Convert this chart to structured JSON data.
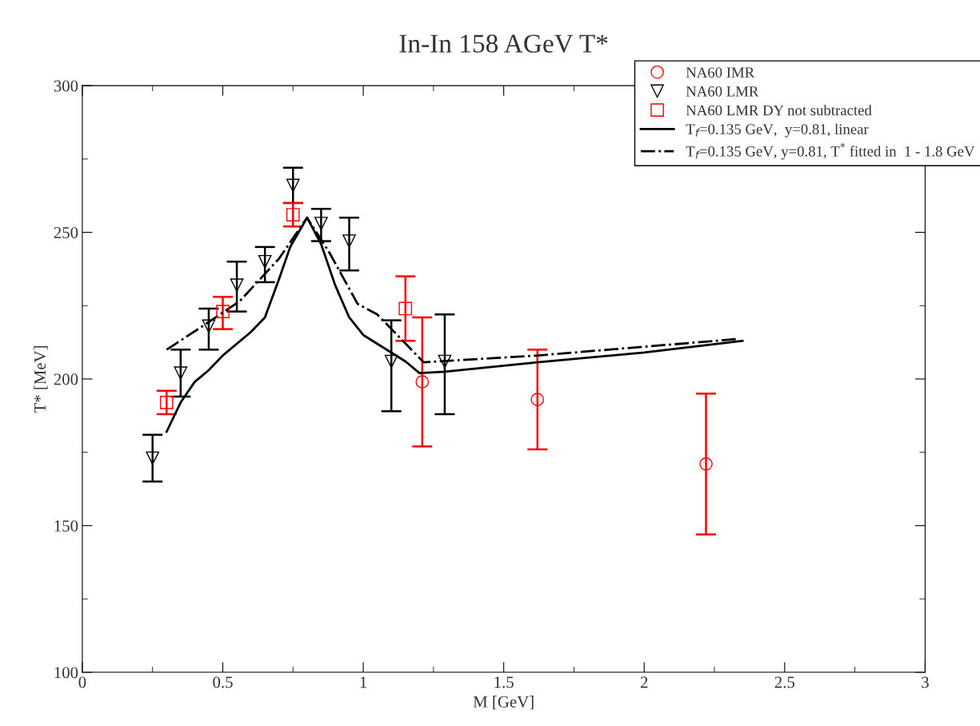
{
  "chart_data": {
    "type": "scatter",
    "title": "In-In 158 AGeV T*",
    "xlabel": "M [GeV]",
    "ylabel": "T* [MeV]",
    "xlim": [
      0,
      3
    ],
    "ylim": [
      100,
      300
    ],
    "xticks": [
      0,
      0.5,
      1,
      1.5,
      2,
      2.5,
      3
    ],
    "yticks": [
      100,
      150,
      200,
      250,
      300
    ],
    "grid": false,
    "legend": "top right",
    "series": [
      {
        "name": "NA60 IMR",
        "marker": "circle",
        "color": "#ff0000",
        "x": [
          1.21,
          1.62,
          2.22
        ],
        "values": [
          199,
          193,
          171
        ],
        "errors": [
          [
            177,
            221
          ],
          [
            176,
            210
          ],
          [
            147,
            195
          ]
        ]
      },
      {
        "name": "NA60 LMR",
        "marker": "triangle",
        "color": "#000000",
        "x": [
          0.25,
          0.35,
          0.45,
          0.55,
          0.65,
          0.75,
          0.85,
          0.95,
          1.1,
          1.29
        ],
        "values": [
          173,
          202,
          218,
          232,
          240,
          266,
          253,
          247,
          206,
          206
        ],
        "errors": [
          [
            165,
            181
          ],
          [
            194,
            210
          ],
          [
            210,
            224
          ],
          [
            223,
            240
          ],
          [
            233,
            245
          ],
          [
            260,
            272
          ],
          [
            247,
            258
          ],
          [
            237,
            255
          ],
          [
            189,
            220
          ],
          [
            188,
            222
          ]
        ]
      },
      {
        "name": "NA60 LMR DY not subtracted",
        "marker": "square",
        "color": "#ff0000",
        "x": [
          0.3,
          0.5,
          0.75,
          1.15
        ],
        "values": [
          192,
          223,
          256,
          224
        ],
        "errors": [
          [
            188,
            196
          ],
          [
            217,
            228
          ],
          [
            252,
            260
          ],
          [
            213,
            235
          ]
        ]
      },
      {
        "name": "T$_{f}$=0.135 GeV,  y=0.81, linear",
        "type": "line",
        "line_style": "solid",
        "color": "#000000",
        "x": [
          0.3,
          0.35,
          0.4,
          0.45,
          0.5,
          0.6,
          0.65,
          0.7,
          0.74,
          0.8,
          0.85,
          0.9,
          0.95,
          1.0,
          1.1,
          1.15,
          1.2,
          1.29,
          1.62,
          2.0,
          2.35
        ],
        "values": [
          182,
          192,
          199,
          203,
          208,
          216,
          221,
          234,
          245,
          255,
          246,
          232,
          221,
          215,
          209,
          206,
          202,
          202.5,
          205.7,
          209,
          213
        ]
      },
      {
        "name": "T$_{f}$=0.135 GeV, y=0.81, T$^{*}$ fitted in  1 - 1.8 GeV",
        "type": "line",
        "line_style": "dashdot",
        "color": "#000000",
        "x": [
          0.3,
          0.42,
          0.56,
          0.7,
          0.8,
          0.88,
          0.98,
          1.05,
          1.215,
          1.62,
          2.33
        ],
        "values": [
          210,
          217.5,
          226.5,
          241,
          255,
          243,
          225.6,
          222,
          205.7,
          208,
          213.6
        ]
      }
    ]
  }
}
